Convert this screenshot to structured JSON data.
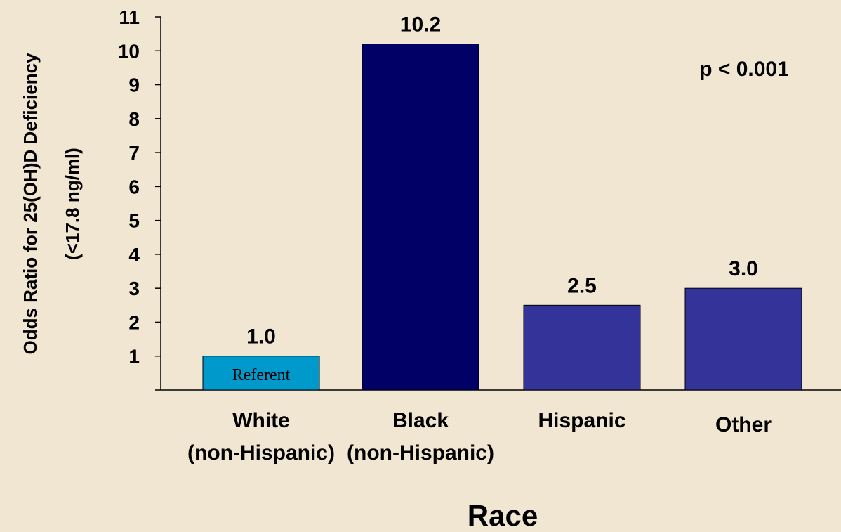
{
  "chart_data": {
    "type": "bar",
    "categories": [
      [
        "White",
        "(non-Hispanic)"
      ],
      [
        "Black",
        "(non-Hispanic)"
      ],
      [
        "Hispanic"
      ],
      [
        "Other"
      ]
    ],
    "values": [
      1.0,
      10.2,
      2.5,
      3.0
    ],
    "value_labels": [
      "1.0",
      "10.2",
      "2.5",
      "3.0"
    ],
    "bar_inner_labels": [
      "Referent",
      "",
      "",
      ""
    ],
    "bar_colors": [
      "#0099cc",
      "#000066",
      "#333399",
      "#333399"
    ],
    "ylabel": [
      "Odds Ratio for 25(OH)D Deficiency",
      "(<17.8 ng/ml)"
    ],
    "xlabel": "Race",
    "annotation": "p < 0.001",
    "ylim": [
      0,
      11
    ],
    "yticks": [
      1,
      2,
      3,
      4,
      5,
      6,
      7,
      8,
      9,
      10,
      11
    ],
    "grid": false,
    "legend": "none"
  }
}
